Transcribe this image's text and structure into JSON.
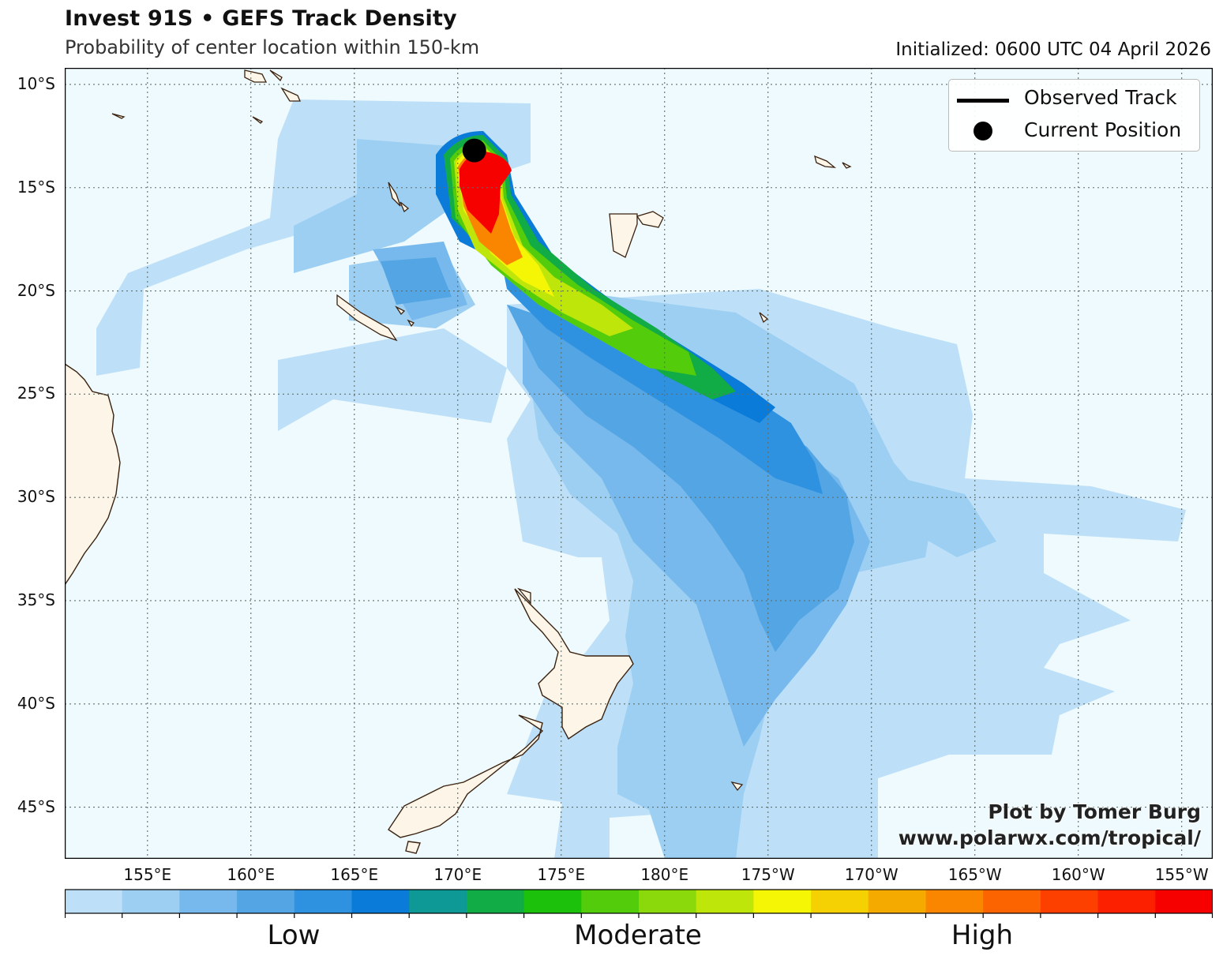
{
  "header": {
    "title": "Invest 91S • GEFS Track Density",
    "subtitle": "Probability of center location within 150-km",
    "initialized": "Initialized: 0600 UTC 04 April 2026"
  },
  "map": {
    "lat_labels": [
      "10°S",
      "15°S",
      "20°S",
      "25°S",
      "30°S",
      "35°S",
      "40°S",
      "45°S"
    ],
    "lon_labels": [
      "155°E",
      "160°E",
      "165°E",
      "170°E",
      "175°E",
      "180°E",
      "175°W",
      "170°W",
      "165°W",
      "160°W",
      "155°W"
    ],
    "extent": {
      "lon_min": 151,
      "lon_max": 206.5,
      "lat_min": -47.5,
      "lat_max": -9.2
    },
    "current_position": {
      "lon": 170.8,
      "lat": -13.2
    },
    "ocean_color": "#eefafd",
    "land_color": "#fdf5e8",
    "coast_color": "#3a2210"
  },
  "legend": {
    "observed_track": "Observed Track",
    "current_position": "Current Position"
  },
  "credit": {
    "line1": "Plot by Tomer Burg",
    "line2": "www.polarwx.com/tropical/"
  },
  "colorbar": {
    "colors": [
      "#bde0f8",
      "#9ccff2",
      "#77b9ec",
      "#53a5e4",
      "#2f92e0",
      "#0a7bd8",
      "#0e9896",
      "#12ac46",
      "#1cc10c",
      "#52cc0b",
      "#8bd90a",
      "#bfe60a",
      "#f5f506",
      "#f5d003",
      "#f5aa00",
      "#fa8600",
      "#fb6400",
      "#fd3f00",
      "#fd2000",
      "#f60000"
    ],
    "labels": [
      "Low",
      "Moderate",
      "High"
    ]
  }
}
